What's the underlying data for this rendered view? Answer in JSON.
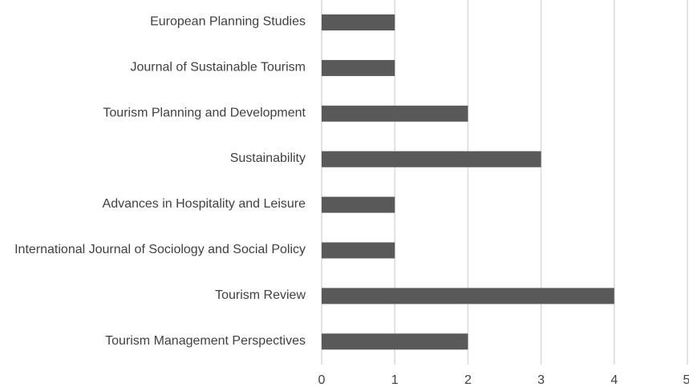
{
  "chart_data": {
    "type": "bar",
    "orientation": "horizontal",
    "title": "",
    "xlabel": "",
    "ylabel": "",
    "categories": [
      "European Planning Studies",
      "Journal of Sustainable Tourism",
      "Tourism Planning and Development",
      "Sustainability",
      "Advances in Hospitality and Leisure",
      "International Journal of Sociology and Social Policy",
      "Tourism Review",
      "Tourism Management Perspectives"
    ],
    "values": [
      1,
      1,
      2,
      3,
      1,
      1,
      4,
      2
    ],
    "xlim": [
      0,
      5
    ],
    "xticks": [
      "0",
      "1",
      "2",
      "3",
      "4",
      "5"
    ],
    "grid": "vertical",
    "legend": "none",
    "colors": {
      "bar": "#595959",
      "grid": "#d9d9d9",
      "text": "#404040"
    }
  }
}
